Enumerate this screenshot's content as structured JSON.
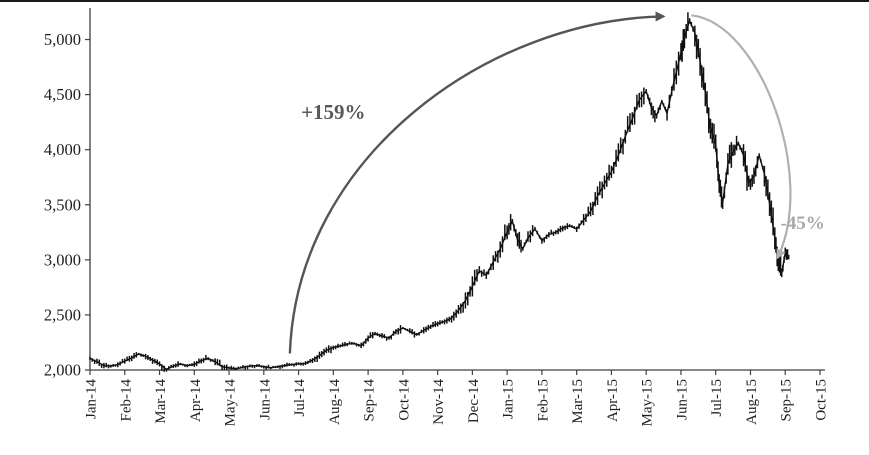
{
  "figure": {
    "background": "#ffffff",
    "top_rule_color": "#1a1a1a"
  },
  "chart_data": {
    "type": "line",
    "title": "",
    "xlabel": "",
    "ylabel": "",
    "grid": "off",
    "legend": "none",
    "axis_color": "#404040",
    "tick_label_color": "#1f1f1f",
    "x_months": 21,
    "x_tick_labels": [
      "Jan-14",
      "Feb-14",
      "Mar-14",
      "Apr-14",
      "May-14",
      "Jun-14",
      "Jul-14",
      "Aug-14",
      "Sep-14",
      "Oct-14",
      "Nov-14",
      "Dec-14",
      "Jan-15",
      "Feb-15",
      "Mar-15",
      "Apr-15",
      "May-15",
      "Jun-15",
      "Jul-15",
      "Aug-15",
      "Sep-15",
      "Oct-15"
    ],
    "y_ticks": [
      2000,
      2500,
      3000,
      3500,
      4000,
      4500,
      5000
    ],
    "y_tick_labels": [
      "2,000",
      "2,500",
      "3,000",
      "3,500",
      "4,000",
      "4,500",
      "5,000"
    ],
    "ylim": [
      2000,
      5250
    ],
    "series": [
      {
        "name": "stock-index",
        "color": "#111111",
        "points": [
          [
            0.0,
            2105
          ],
          [
            0.2,
            2075
          ],
          [
            0.4,
            2040
          ],
          [
            0.6,
            2035
          ],
          [
            0.8,
            2050
          ],
          [
            1.0,
            2080
          ],
          [
            1.2,
            2110
          ],
          [
            1.4,
            2145
          ],
          [
            1.6,
            2125
          ],
          [
            1.8,
            2090
          ],
          [
            2.0,
            2055
          ],
          [
            2.2,
            2005
          ],
          [
            2.4,
            2035
          ],
          [
            2.6,
            2055
          ],
          [
            2.8,
            2040
          ],
          [
            3.0,
            2050
          ],
          [
            3.2,
            2085
          ],
          [
            3.4,
            2105
          ],
          [
            3.6,
            2075
          ],
          [
            3.8,
            2030
          ],
          [
            4.0,
            2020
          ],
          [
            4.2,
            2010
          ],
          [
            4.4,
            2025
          ],
          [
            4.6,
            2035
          ],
          [
            4.8,
            2040
          ],
          [
            5.0,
            2030
          ],
          [
            5.2,
            2020
          ],
          [
            5.4,
            2030
          ],
          [
            5.6,
            2040
          ],
          [
            5.8,
            2050
          ],
          [
            6.0,
            2055
          ],
          [
            6.2,
            2060
          ],
          [
            6.4,
            2090
          ],
          [
            6.6,
            2130
          ],
          [
            6.8,
            2180
          ],
          [
            7.0,
            2205
          ],
          [
            7.2,
            2220
          ],
          [
            7.4,
            2235
          ],
          [
            7.6,
            2240
          ],
          [
            7.8,
            2220
          ],
          [
            8.0,
            2290
          ],
          [
            8.2,
            2330
          ],
          [
            8.4,
            2310
          ],
          [
            8.6,
            2290
          ],
          [
            8.8,
            2350
          ],
          [
            9.0,
            2380
          ],
          [
            9.2,
            2350
          ],
          [
            9.4,
            2320
          ],
          [
            9.6,
            2360
          ],
          [
            9.8,
            2395
          ],
          [
            10.0,
            2420
          ],
          [
            10.2,
            2440
          ],
          [
            10.4,
            2470
          ],
          [
            10.6,
            2540
          ],
          [
            10.8,
            2630
          ],
          [
            11.0,
            2760
          ],
          [
            11.2,
            2900
          ],
          [
            11.4,
            2860
          ],
          [
            11.6,
            2980
          ],
          [
            11.8,
            3100
          ],
          [
            12.0,
            3250
          ],
          [
            12.15,
            3350
          ],
          [
            12.3,
            3180
          ],
          [
            12.45,
            3100
          ],
          [
            12.6,
            3200
          ],
          [
            12.8,
            3280
          ],
          [
            13.0,
            3175
          ],
          [
            13.2,
            3230
          ],
          [
            13.4,
            3250
          ],
          [
            13.6,
            3290
          ],
          [
            13.8,
            3310
          ],
          [
            14.0,
            3280
          ],
          [
            14.2,
            3360
          ],
          [
            14.4,
            3440
          ],
          [
            14.6,
            3580
          ],
          [
            14.8,
            3690
          ],
          [
            15.0,
            3800
          ],
          [
            15.2,
            3950
          ],
          [
            15.4,
            4120
          ],
          [
            15.6,
            4280
          ],
          [
            15.8,
            4450
          ],
          [
            16.0,
            4530
          ],
          [
            16.15,
            4380
          ],
          [
            16.3,
            4310
          ],
          [
            16.45,
            4440
          ],
          [
            16.6,
            4330
          ],
          [
            16.8,
            4620
          ],
          [
            17.0,
            4880
          ],
          [
            17.1,
            5020
          ],
          [
            17.25,
            5170
          ],
          [
            17.4,
            5060
          ],
          [
            17.55,
            4800
          ],
          [
            17.7,
            4520
          ],
          [
            17.85,
            4190
          ],
          [
            18.0,
            4050
          ],
          [
            18.1,
            3680
          ],
          [
            18.2,
            3520
          ],
          [
            18.35,
            3870
          ],
          [
            18.5,
            3980
          ],
          [
            18.65,
            4060
          ],
          [
            18.8,
            3950
          ],
          [
            18.95,
            3700
          ],
          [
            19.1,
            3760
          ],
          [
            19.25,
            3950
          ],
          [
            19.4,
            3780
          ],
          [
            19.55,
            3510
          ],
          [
            19.7,
            3200
          ],
          [
            19.8,
            2970
          ],
          [
            19.9,
            2880
          ],
          [
            20.0,
            3060
          ],
          [
            20.1,
            3020
          ]
        ]
      }
    ],
    "annotations": [
      {
        "name": "rise-label",
        "text": "+159%",
        "color": "#595959",
        "pos": [
          7.0,
          4280
        ],
        "font_size": 21
      },
      {
        "name": "fall-label",
        "text": "-45%",
        "color": "#a8a8a8",
        "pos": [
          20.5,
          3280
        ],
        "font_size": 19
      }
    ],
    "arrows": [
      {
        "name": "rise-arrow",
        "color": "#555555",
        "width": 2.4,
        "start": [
          5.75,
          2150
        ],
        "c1": [
          5.95,
          3950
        ],
        "c2": [
          11.5,
          5180
        ],
        "end": [
          16.5,
          5210
        ]
      },
      {
        "name": "fall-arrow",
        "color": "#b0b0b0",
        "width": 2.2,
        "start": [
          17.3,
          5220
        ],
        "c1": [
          19.3,
          5150
        ],
        "c2": [
          20.9,
          3750
        ],
        "end": [
          19.78,
          3020
        ]
      }
    ]
  }
}
